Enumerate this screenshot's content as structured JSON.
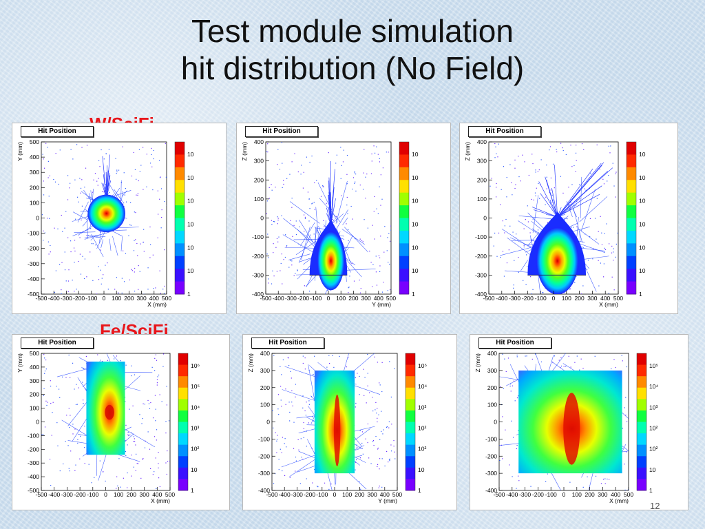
{
  "slide": {
    "title_line1": "Test module simulation",
    "title_line2": "hit distribution (No Field)",
    "row1_label": "W/SciFi",
    "row2_label": "Fe/SciFi",
    "page_number": "12"
  },
  "chart_data": [
    {
      "type": "heatmap",
      "title": "Hit Position",
      "row": "W/SciFi",
      "xlabel": "X (mm)",
      "ylabel": "Y (mm)",
      "xlim": [
        -500,
        500
      ],
      "ylim": [
        -500,
        500
      ],
      "x_ticks": [
        "-500",
        "-400",
        "-300",
        "-200",
        "-100",
        "0",
        "100",
        "200",
        "300",
        "400",
        "500"
      ],
      "y_ticks": [
        "500",
        "400",
        "300",
        "200",
        "100",
        "0",
        "-100",
        "-200",
        "-300",
        "-400",
        "-500"
      ],
      "palette_labels": [
        "10",
        "10",
        "10",
        "10",
        "10",
        "10",
        "1"
      ],
      "core": {
        "x": 20,
        "y": 30
      },
      "occupied_region": {
        "x": [
          -150,
          150
        ],
        "y": [
          -150,
          150
        ]
      },
      "shape": "circle",
      "sparse_tail": {
        "x": 20,
        "y": [
          60,
          430
        ]
      }
    },
    {
      "type": "heatmap",
      "title": "Hit Position",
      "row": "W/SciFi",
      "xlabel": "Y (mm)",
      "ylabel": "Z (mm)",
      "xlim": [
        -500,
        500
      ],
      "ylim": [
        -400,
        400
      ],
      "x_ticks": [
        "-500",
        "-400",
        "-300",
        "-200",
        "-100",
        "0",
        "100",
        "200",
        "300",
        "400",
        "500"
      ],
      "y_ticks": [
        "400",
        "300",
        "200",
        "100",
        "0",
        "-100",
        "-200",
        "-300",
        "-400"
      ],
      "palette_labels": [
        "10",
        "10",
        "10",
        "10",
        "10",
        "10",
        "1"
      ],
      "core": {
        "x": 20,
        "y": -240
      },
      "occupied_region": {
        "x": [
          -150,
          150
        ],
        "y": [
          -300,
          -20
        ]
      },
      "shape": "flame",
      "sparse_tail": {
        "x": 20,
        "y": [
          -20,
          300
        ]
      }
    },
    {
      "type": "heatmap",
      "title": "Hit Position",
      "row": "W/SciFi",
      "xlabel": "X (mm)",
      "ylabel": "Z (mm)",
      "xlim": [
        -500,
        500
      ],
      "ylim": [
        -400,
        400
      ],
      "x_ticks": [
        "-500",
        "-400",
        "-300",
        "-200",
        "-100",
        "0",
        "100",
        "200",
        "300",
        "400",
        "500"
      ],
      "y_ticks": [
        "400",
        "300",
        "200",
        "100",
        "0",
        "-100",
        "-200",
        "-300",
        "-400"
      ],
      "palette_labels": [
        "10",
        "10",
        "10",
        "10",
        "10",
        "10",
        "1"
      ],
      "core": {
        "x": 30,
        "y": -240
      },
      "occupied_region": {
        "x": [
          -200,
          250
        ],
        "y": [
          -300,
          20
        ]
      },
      "shape": "flame",
      "sparse_tail": {
        "x": 150,
        "y": [
          20,
          300
        ]
      }
    },
    {
      "type": "heatmap",
      "title": "Hit Position",
      "row": "Fe/SciFi",
      "xlabel": "X (mm)",
      "ylabel": "Y (mm)",
      "xlim": [
        -500,
        500
      ],
      "ylim": [
        -500,
        500
      ],
      "x_ticks": [
        "-500",
        "-400",
        "-300",
        "-200",
        "-100",
        "0",
        "100",
        "200",
        "300",
        "400",
        "500"
      ],
      "y_ticks": [
        "500",
        "400",
        "300",
        "200",
        "100",
        "0",
        "-100",
        "-200",
        "-300",
        "-400",
        "-500"
      ],
      "palette_labels": [
        "10⁶",
        "10⁵",
        "10⁴",
        "10³",
        "10²",
        "10",
        "1"
      ],
      "core": {
        "x": 30,
        "y": 70
      },
      "occupied_region": {
        "x": [
          -150,
          150
        ],
        "y": [
          -240,
          440
        ]
      },
      "shape": "rect",
      "sparse_tail": null
    },
    {
      "type": "heatmap",
      "title": "Hit Position",
      "row": "Fe/SciFi",
      "xlabel": "Y (mm)",
      "ylabel": "Z (mm)",
      "xlim": [
        -500,
        500
      ],
      "ylim": [
        -400,
        400
      ],
      "x_ticks": [
        "-500",
        "-400",
        "-300",
        "-200",
        "-100",
        "0",
        "100",
        "200",
        "300",
        "400",
        "500"
      ],
      "y_ticks": [
        "400",
        "300",
        "200",
        "100",
        "0",
        "-100",
        "-200",
        "-300",
        "-400"
      ],
      "palette_labels": [
        "10⁵",
        "10⁴",
        "10³",
        "10²",
        "10²",
        "10",
        "1"
      ],
      "core": {
        "x": 20,
        "y": -50
      },
      "occupied_region": {
        "x": [
          -160,
          160
        ],
        "y": [
          -300,
          300
        ]
      },
      "shape": "ellipse",
      "sparse_tail": null
    },
    {
      "type": "heatmap",
      "title": "Hit Position",
      "row": "Fe/SciFi",
      "xlabel": "X (mm)",
      "ylabel": "Z (mm)",
      "xlim": [
        -500,
        500
      ],
      "ylim": [
        -400,
        400
      ],
      "x_ticks": [
        "-500",
        "-400",
        "-300",
        "-200",
        "-100",
        "0",
        "100",
        "200",
        "300",
        "400",
        "500"
      ],
      "y_ticks": [
        "400",
        "300",
        "200",
        "100",
        "0",
        "-100",
        "-200",
        "-300",
        "-400"
      ],
      "palette_labels": [
        "10⁵",
        "10⁴",
        "10³",
        "10²",
        "10²",
        "10",
        "1"
      ],
      "core": {
        "x": 60,
        "y": -40
      },
      "occupied_region": {
        "x": [
          -350,
          450
        ],
        "y": [
          -300,
          300
        ]
      },
      "shape": "ellipse",
      "sparse_tail": null
    }
  ]
}
